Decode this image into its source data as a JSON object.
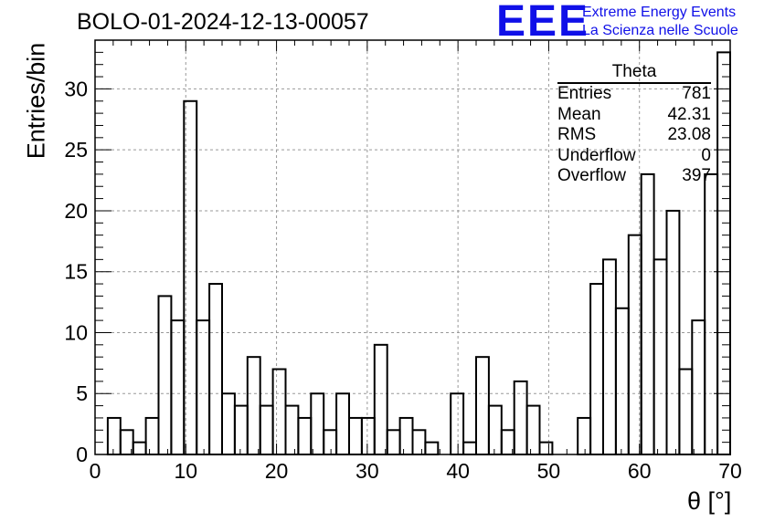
{
  "chart_data": {
    "type": "bar",
    "title": "BOLO-01-2024-12-13-00057",
    "xlabel": "θ [°]",
    "ylabel": "Entries/bin",
    "xlim": [
      0,
      70
    ],
    "ylim": [
      0,
      34
    ],
    "bin_width": 1.4,
    "bin_edges_start": 0,
    "values": [
      0,
      3,
      2,
      1,
      3,
      13,
      11,
      29,
      11,
      14,
      5,
      4,
      8,
      4,
      7,
      4,
      3,
      5,
      2,
      5,
      3,
      3,
      9,
      2,
      3,
      2,
      1,
      0,
      5,
      1,
      8,
      4,
      2,
      6,
      4,
      1,
      0,
      0,
      3,
      14,
      16,
      12,
      18,
      23,
      16,
      20,
      7,
      11,
      23,
      33
    ],
    "xticks": [
      "0",
      "10",
      "20",
      "30",
      "40",
      "50",
      "60",
      "70"
    ],
    "yticks": [
      "0",
      "5",
      "10",
      "15",
      "20",
      "25",
      "30"
    ],
    "grid": true,
    "stats_box": {
      "name": "Theta",
      "rows": [
        {
          "label": "Entries",
          "value": "781"
        },
        {
          "label": "Mean",
          "value": "42.31"
        },
        {
          "label": "RMS",
          "value": "23.08"
        },
        {
          "label": "Underflow",
          "value": "0"
        },
        {
          "label": "Overflow",
          "value": "397"
        }
      ]
    }
  },
  "logo": {
    "mark": "EEE",
    "line1": "Extreme Energy Events",
    "line2": "La Scienza nelle Scuole",
    "color": "#1010e8"
  }
}
